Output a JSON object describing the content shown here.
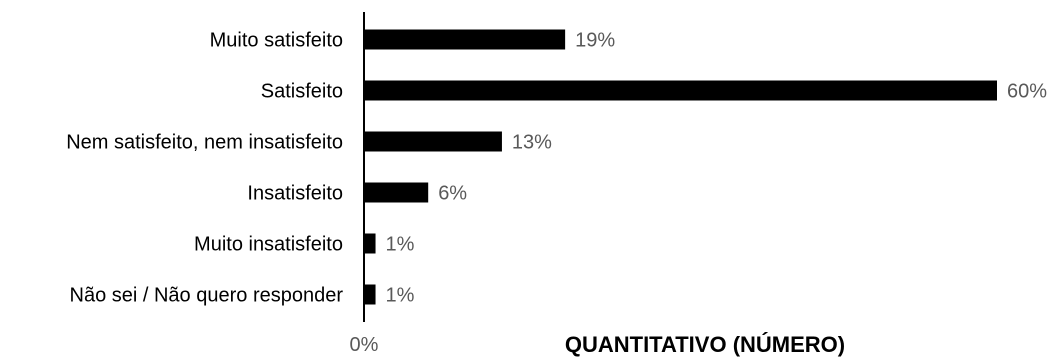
{
  "chart_data": {
    "type": "bar",
    "orientation": "horizontal",
    "categories": [
      "Muito satisfeito",
      "Satisfeito",
      "Nem satisfeito, nem insatisfeito",
      "Insatisfeito",
      "Muito insatisfeito",
      "Não sei / Não quero responder"
    ],
    "values": [
      19,
      60,
      13,
      6,
      1,
      1
    ],
    "value_labels": [
      "19%",
      "60%",
      "13%",
      "6%",
      "1%",
      "1%"
    ],
    "x_tick_labels": [
      "0%"
    ],
    "xlabel": "QUANTITATIVO (NÚMERO)",
    "xlim": [
      0,
      60
    ],
    "grid": false,
    "legend": "none",
    "colors": {
      "bar": "#000000",
      "axis": "#000000",
      "value_label": "#595959",
      "tick_label": "#595959"
    }
  }
}
